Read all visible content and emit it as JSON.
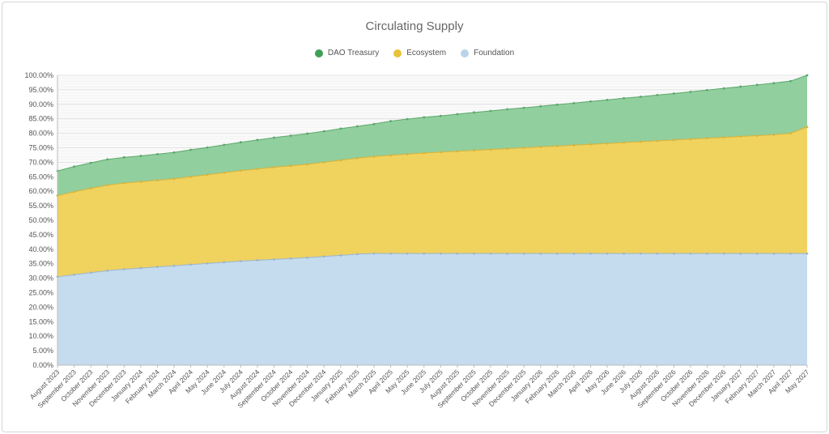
{
  "chart_data": {
    "type": "area",
    "stacked": true,
    "title": "Circulating Supply",
    "legend_position": "top",
    "categories": [
      "August 2023",
      "September 2023",
      "October 2023",
      "November 2023",
      "December 2023",
      "January 2024",
      "February 2024",
      "March 2024",
      "April 2024",
      "May 2024",
      "June 2024",
      "July 2024",
      "August 2024",
      "September 2024",
      "October 2024",
      "November 2024",
      "December 2024",
      "January 2025",
      "February 2025",
      "March 2025",
      "April 2025",
      "May 2025",
      "June 2025",
      "July 2025",
      "August 2025",
      "September 2025",
      "October 2025",
      "November 2025",
      "December 2025",
      "January 2026",
      "February 2026",
      "March 2026",
      "April 2026",
      "May 2026",
      "June 2026",
      "July 2026",
      "August 2026",
      "September 2026",
      "October 2026",
      "November 2026",
      "December 2026",
      "January 2027",
      "February 2027",
      "March 2027",
      "April 2027",
      "May 2027"
    ],
    "series": [
      {
        "name": "Foundation",
        "color": "#c5dbee",
        "stroke": "#9ab6cf",
        "values": [
          30.5,
          31.2,
          31.9,
          32.6,
          33.1,
          33.5,
          33.9,
          34.3,
          34.7,
          35.1,
          35.5,
          35.9,
          36.2,
          36.5,
          36.8,
          37.1,
          37.5,
          37.9,
          38.3,
          38.5,
          38.5,
          38.5,
          38.5,
          38.5,
          38.5,
          38.5,
          38.5,
          38.5,
          38.5,
          38.5,
          38.5,
          38.5,
          38.5,
          38.5,
          38.5,
          38.5,
          38.5,
          38.5,
          38.5,
          38.5,
          38.5,
          38.5,
          38.5,
          38.5,
          38.5,
          38.5
        ]
      },
      {
        "name": "Ecosystem",
        "color": "#f0d25e",
        "stroke": "#d6b33b",
        "values": [
          28.0,
          28.6,
          29.1,
          29.5,
          29.7,
          29.8,
          29.9,
          30.0,
          30.3,
          30.6,
          30.9,
          31.2,
          31.5,
          31.8,
          32.0,
          32.2,
          32.5,
          32.8,
          33.1,
          33.5,
          33.9,
          34.3,
          34.7,
          35.0,
          35.3,
          35.6,
          35.9,
          36.2,
          36.5,
          36.8,
          37.1,
          37.4,
          37.7,
          38.0,
          38.3,
          38.6,
          38.9,
          39.2,
          39.5,
          39.8,
          40.1,
          40.4,
          40.7,
          41.0,
          41.5,
          43.7
        ]
      },
      {
        "name": "DAO Treasury",
        "color": "#92cf9e",
        "stroke": "#5aa86a",
        "values": [
          8.5,
          8.7,
          8.8,
          8.9,
          8.9,
          8.9,
          9.0,
          9.1,
          9.3,
          9.4,
          9.6,
          9.8,
          10.0,
          10.2,
          10.4,
          10.6,
          10.7,
          10.9,
          11.0,
          11.2,
          11.8,
          12.1,
          12.3,
          12.5,
          12.8,
          13.1,
          13.3,
          13.6,
          13.8,
          14.0,
          14.3,
          14.5,
          14.8,
          15.0,
          15.3,
          15.5,
          15.8,
          16.0,
          16.3,
          16.6,
          16.9,
          17.2,
          17.5,
          17.8,
          18.0,
          17.8
        ]
      }
    ],
    "legend_order": [
      "DAO Treasury",
      "Ecosystem",
      "Foundation"
    ],
    "y_ticks": [
      "0.00%",
      "5.00%",
      "10.00%",
      "15.00%",
      "20.00%",
      "25.00%",
      "30.00%",
      "35.00%",
      "40.00%",
      "45.00%",
      "50.00%",
      "55.00%",
      "60.00%",
      "65.00%",
      "70.00%",
      "75.00%",
      "80.00%",
      "85.00%",
      "90.00%",
      "95.00%",
      "100.00%"
    ],
    "ylim": [
      0,
      100
    ],
    "grid": true,
    "xlabel": "",
    "ylabel": ""
  },
  "legend": [
    {
      "label": "DAO Treasury",
      "color": "#3fa058"
    },
    {
      "label": "Ecosystem",
      "color": "#e8c23a"
    },
    {
      "label": "Foundation",
      "color": "#b9d4ea"
    }
  ]
}
